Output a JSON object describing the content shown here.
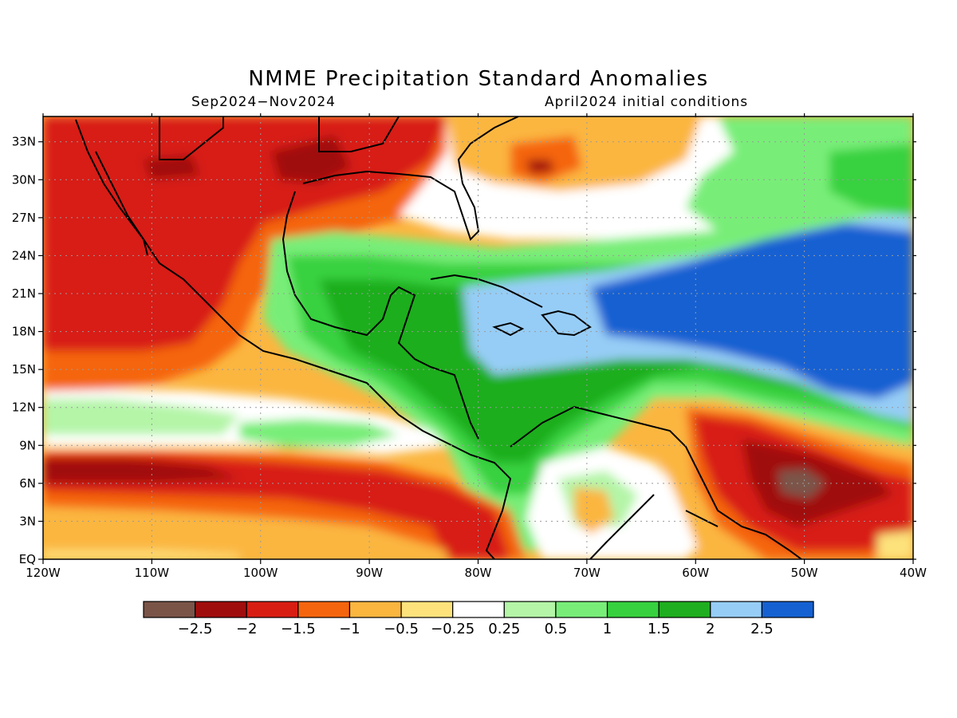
{
  "title": "NMME Precipitation Standard Anomalies",
  "subtitle_left": "Sep2024−Nov2024",
  "subtitle_right": "April2024 initial conditions",
  "map": {
    "lon_range": [
      -120,
      -40
    ],
    "lat_range": [
      0,
      35
    ],
    "lon_labels": [
      "120W",
      "110W",
      "100W",
      "90W",
      "80W",
      "70W",
      "60W",
      "50W",
      "40W"
    ],
    "lat_labels": [
      "EQ",
      "3N",
      "6N",
      "9N",
      "12N",
      "15N",
      "18N",
      "21N",
      "24N",
      "27N",
      "30N",
      "33N"
    ]
  },
  "colorbar": {
    "colors": [
      "#7b5448",
      "#a00d0d",
      "#d81e13",
      "#f5650e",
      "#fbb640",
      "#fde27c",
      "#ffffff",
      "#b4f5a7",
      "#78ee78",
      "#37d13f",
      "#1fae1f",
      "#96cdf6",
      "#1561d2"
    ],
    "labels": [
      "−2.5",
      "−2",
      "−1.5",
      "−1",
      "−0.5",
      "−0.25",
      "0.25",
      "0.5",
      "1",
      "1.5",
      "2",
      "2.5"
    ]
  }
}
